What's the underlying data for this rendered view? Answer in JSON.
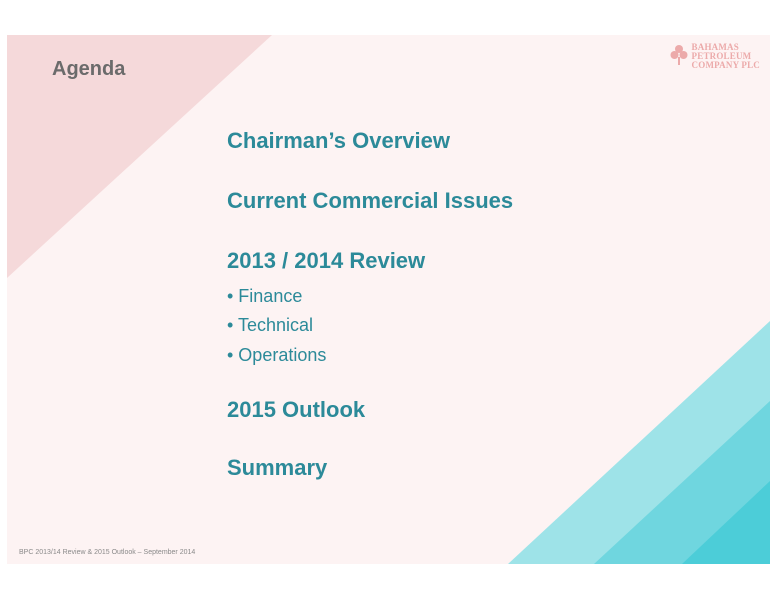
{
  "slide": {
    "title": "Agenda",
    "logo": {
      "line1": "BAHAMAS",
      "line2": "PETROLEUM",
      "line3": "COMPANY PLC",
      "icon": "flame-leaf-icon"
    },
    "agenda": {
      "items": [
        "Chairman’s Overview",
        "Current Commercial Issues",
        "2013 / 2014 Review",
        "2015 Outlook",
        "Summary"
      ],
      "review_bullets": [
        "• Finance",
        "• Technical",
        "• Operations"
      ]
    },
    "footer": "BPC 2013/14 Review & 2015 Outlook – September 2014"
  },
  "colors": {
    "background": "#fdf3f3",
    "pink_triangle": "#f5d9da",
    "teal_light": "#9ee3e8",
    "teal_mid": "#6fd6df",
    "teal_dark": "#4ccdd8",
    "heading_text": "#2c8a99",
    "title_text": "#6b6b6b"
  }
}
